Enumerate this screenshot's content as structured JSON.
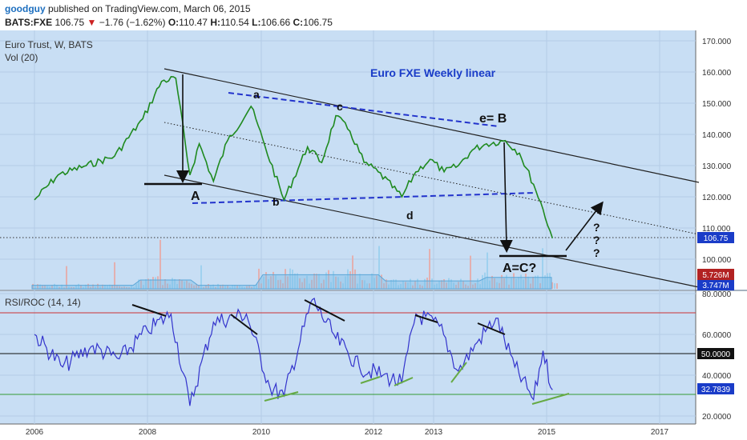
{
  "header": {
    "user": "goodguy",
    "published": "published on TradingView.com, March 06, 2015",
    "symbol": "BATS:FXE",
    "last": "106.75",
    "change_arrow": "▼",
    "change": "−1.76 (−1.62%)",
    "open_label": "O:",
    "open": "110.47",
    "high_label": "H:",
    "high": "110.54",
    "low_label": "L:",
    "low": "106.66",
    "close_label": "C:",
    "close": "106.75"
  },
  "panes": {
    "main_title": "Euro Trust, W, BATS",
    "vol_title": "Vol (20)",
    "rsi_title": "RSI/ROC (14, 14)"
  },
  "colors": {
    "price": "#33aa33",
    "volume": "#88c4e6",
    "rsi": "#3333cc",
    "pane_bg": "#c8def4",
    "annotation_blue": "#2233cc",
    "channel": "#222222",
    "rsi_upper": "#cc3333",
    "rsi_lower": "#339933",
    "divergence_green": "#66aa44",
    "label_blue": "#1a3cc8",
    "label_red": "#b22222"
  },
  "chart_data": [
    {
      "type": "line",
      "name": "FXE price (weekly)",
      "x": [
        "2006-01",
        "2006-06",
        "2006-12",
        "2007-06",
        "2007-12",
        "2008-04",
        "2008-07",
        "2008-10",
        "2008-12",
        "2009-03",
        "2009-06",
        "2009-11",
        "2010-02",
        "2010-06",
        "2010-11",
        "2011-02",
        "2011-05",
        "2011-08",
        "2011-11",
        "2012-02",
        "2012-07",
        "2012-10",
        "2013-01",
        "2013-04",
        "2013-07",
        "2013-10",
        "2014-01",
        "2014-05",
        "2014-08",
        "2014-11",
        "2015-01",
        "2015-03"
      ],
      "y": [
        119,
        127,
        130,
        133,
        145,
        157,
        158,
        127,
        137,
        125,
        138,
        149,
        136,
        119,
        136,
        131,
        146,
        141,
        131,
        128,
        120,
        128,
        132,
        128,
        130,
        135,
        137,
        138,
        134,
        124,
        116,
        106.75
      ],
      "ylim": [
        84,
        170
      ],
      "y_ticks": [
        "100.000",
        "110.000",
        "120.000",
        "130.000",
        "140.000",
        "150.000",
        "160.000",
        "170.000"
      ],
      "last_value_label": "106.75",
      "annotations": {
        "title": "Euro  FXE Weekly linear",
        "wave_labels": [
          "a",
          "b",
          "c",
          "d",
          "e= B"
        ],
        "leg_labels": [
          "A",
          "A=C?"
        ],
        "question_marks": [
          "?",
          "?",
          "?"
        ]
      }
    },
    {
      "type": "bar",
      "name": "Vol (20)",
      "value_labels": [
        "5.726M",
        "3.747M"
      ]
    },
    {
      "type": "line",
      "name": "RSI/ROC (14, 14)",
      "x": [
        "2006-01",
        "2006-07",
        "2007-01",
        "2007-07",
        "2008-01",
        "2008-06",
        "2008-10",
        "2009-03",
        "2009-10",
        "2010-03",
        "2010-06",
        "2010-12",
        "2011-05",
        "2011-10",
        "2012-03",
        "2012-07",
        "2012-10",
        "2013-03",
        "2013-07",
        "2013-11",
        "2014-03",
        "2014-07",
        "2014-11",
        "2015-01",
        "2015-03"
      ],
      "y": [
        60,
        44,
        54,
        48,
        62,
        70,
        25,
        66,
        70,
        34,
        30,
        77,
        58,
        44,
        40,
        36,
        70,
        64,
        42,
        56,
        68,
        44,
        28,
        52,
        32.78
      ],
      "ylim": [
        15,
        82
      ],
      "y_ticks": [
        "20.0000",
        "40.0000",
        "60.0000",
        "80.0000"
      ],
      "levels": [
        70,
        50,
        30
      ],
      "level_label": "50.0000",
      "last_value_label": "32.7839"
    }
  ],
  "x_axis": {
    "tick_labels": [
      "2006",
      "2008",
      "2010",
      "2012",
      "2013",
      "2015",
      "2017"
    ]
  }
}
